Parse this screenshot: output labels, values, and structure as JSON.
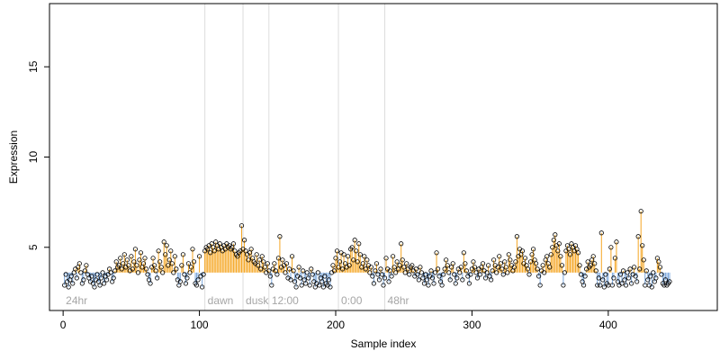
{
  "chart_data": {
    "type": "scatter",
    "title": "",
    "xlabel": "Sample index",
    "ylabel": "Expression",
    "xlim": [
      -10,
      480
    ],
    "ylim": [
      1.5,
      18.5
    ],
    "xticks": [
      0,
      100,
      200,
      300,
      400
    ],
    "yticks": [
      5,
      10,
      15
    ],
    "baseline": 3.6,
    "colors": {
      "above": "#f5a623",
      "below": "#7aa7dd",
      "separator": "#dddddd",
      "point_stroke": "#000000",
      "label": "#a6a6a6"
    },
    "group_labels": [
      {
        "text": "24hr",
        "x": 2
      },
      {
        "text": "dawn",
        "x": 106
      },
      {
        "text": "dusk",
        "x": 134
      },
      {
        "text": "12:00",
        "x": 153
      },
      {
        "text": "0:00",
        "x": 204
      },
      {
        "text": "48hr",
        "x": 238
      }
    ],
    "separators": [
      104,
      132,
      151,
      202,
      236
    ],
    "series": [
      {
        "x_start": 1,
        "values": [
          2.9,
          3.5,
          3.1,
          2.8,
          3.2,
          3.4,
          3.0,
          3.6,
          3.8,
          3.3,
          3.9,
          4.1,
          3.6,
          3.0,
          3.2,
          3.7,
          4.0,
          3.5,
          3.3,
          3.1,
          3.4,
          3.0,
          2.8,
          3.2,
          3.5,
          3.1,
          2.9,
          3.3,
          3.6,
          3.0,
          3.4,
          3.2,
          3.5,
          3.8,
          3.6,
          3.1,
          3.3,
          3.7,
          4.2,
          3.9,
          4.0,
          4.4,
          3.8,
          4.1,
          4.6,
          3.9,
          4.3,
          4.0,
          3.7,
          4.5,
          3.8,
          4.2,
          4.9,
          4.0,
          3.6,
          4.3,
          4.7,
          3.9,
          4.1,
          4.4,
          3.8,
          3.5,
          3.2,
          3.0,
          3.9,
          4.4,
          4.0,
          3.7,
          3.3,
          4.8,
          4.2,
          3.9,
          3.6,
          5.3,
          4.6,
          5.1,
          4.0,
          4.3,
          4.8,
          4.1,
          3.6,
          4.5,
          3.8,
          3.2,
          2.9,
          3.1,
          4.0,
          4.6,
          3.5,
          3.0,
          3.3,
          4.1,
          3.6,
          3.9,
          4.9,
          4.2,
          3.0,
          2.9,
          3.2,
          4.5,
          3.4,
          2.8,
          3.5,
          4.8,
          5.0,
          4.9,
          5.1,
          4.7,
          5.2,
          5.0,
          4.8,
          5.3,
          5.1,
          4.9,
          5.2,
          5.0,
          4.8,
          5.1,
          4.9,
          5.2,
          5.0,
          5.1,
          4.9,
          5.0,
          5.2,
          4.8,
          4.6,
          4.5,
          4.7,
          4.8,
          6.2,
          4.9,
          5.4,
          4.8,
          4.6,
          4.3,
          4.7,
          4.9,
          4.4,
          4.2,
          4.1,
          4.6,
          4.0,
          4.3,
          3.8,
          4.5,
          4.2,
          3.9,
          3.6,
          4.1,
          3.7,
          3.4,
          2.9,
          3.8,
          4.1,
          3.7,
          3.5,
          4.4,
          5.6,
          3.9,
          4.3,
          4.0,
          3.6,
          4.1,
          3.3,
          3.8,
          3.2,
          4.5,
          3.7,
          3.1,
          2.8,
          3.4,
          3.9,
          3.3,
          2.9,
          3.7,
          3.2,
          3.0,
          3.6,
          3.3,
          2.9,
          3.8,
          3.5,
          3.1,
          2.8,
          3.0,
          3.6,
          2.9,
          3.3,
          3.1,
          2.8,
          3.4,
          3.0,
          2.9,
          3.2,
          2.8,
          3.6,
          4.0,
          3.7,
          4.4,
          4.8,
          3.9,
          4.2,
          4.7,
          3.8,
          4.6,
          4.1,
          3.9,
          4.5,
          4.0,
          4.9,
          5.0,
          4.3,
          5.4,
          4.8,
          4.2,
          5.2,
          4.6,
          3.9,
          4.1,
          4.5,
          3.8,
          4.3,
          4.0,
          3.6,
          3.9,
          3.4,
          3.0,
          3.7,
          4.1,
          3.5,
          3.2,
          3.8,
          3.5,
          2.9,
          3.3,
          4.4,
          3.8,
          3.1,
          3.7,
          3.4,
          4.5,
          3.9,
          3.6,
          4.2,
          3.8,
          4.0,
          5.2,
          4.3,
          3.9,
          3.6,
          4.1,
          3.8,
          3.5,
          3.9,
          4.0,
          3.7,
          3.4,
          3.8,
          3.5,
          3.2,
          3.9,
          3.6,
          3.3,
          3.0,
          3.5,
          3.2,
          2.9,
          3.4,
          3.7,
          3.3,
          3.0,
          3.6,
          4.7,
          3.8,
          3.4,
          3.1,
          2.9,
          3.5,
          3.8,
          4.3,
          4.0,
          3.6,
          3.2,
          3.9,
          4.1,
          3.5,
          3.0,
          3.3,
          3.8,
          3.6,
          3.9,
          3.2,
          4.7,
          4.1,
          3.7,
          3.4,
          3.0,
          3.5,
          3.8,
          4.2,
          3.9,
          3.6,
          3.3,
          3.8,
          3.5,
          3.9,
          4.1,
          3.7,
          3.3,
          3.6,
          4.0,
          3.4,
          3.2,
          3.7,
          4.3,
          4.0,
          3.6,
          3.9,
          4.5,
          4.1,
          3.8,
          3.5,
          4.2,
          3.9,
          3.6,
          4.6,
          4.3,
          4.0,
          3.7,
          3.9,
          4.2,
          5.6,
          4.5,
          4.9,
          4.6,
          4.8,
          4.1,
          4.4,
          4.0,
          3.8,
          3.5,
          4.2,
          4.6,
          4.9,
          4.3,
          4.1,
          3.8,
          3.4,
          2.9,
          3.7,
          4.0,
          3.6,
          4.3,
          4.5,
          4.1,
          3.9,
          4.6,
          5.0,
          5.4,
          5.7,
          5.1,
          4.8,
          5.2,
          4.5,
          4.0,
          2.9,
          3.6,
          4.8,
          5.1,
          4.9,
          4.6,
          5.2,
          5.0,
          4.8,
          5.1,
          4.9,
          4.7,
          4.0,
          3.5,
          3.1,
          2.9,
          3.4,
          3.8,
          4.2,
          3.9,
          4.0,
          4.3,
          4.5,
          4.1,
          3.7,
          2.9,
          3.3,
          2.9,
          5.8,
          3.2,
          2.8,
          3.5,
          3.0,
          2.9,
          3.8,
          5.0,
          2.9,
          3.3,
          4.4,
          5.3,
          3.1,
          2.9,
          3.5,
          3.0,
          3.7,
          3.2,
          2.9,
          3.6,
          3.3,
          3.8,
          3.0,
          3.5,
          3.9,
          3.4,
          3.1,
          5.6,
          3.8,
          7.0,
          5.1,
          4.3,
          2.9,
          3.7,
          3.2,
          2.9,
          3.4,
          2.8,
          3.6,
          3.1,
          3.3,
          4.4,
          4.2,
          3.9,
          3.5,
          3.0,
          2.9,
          3.2,
          2.9,
          3.0,
          3.1
        ]
      }
    ]
  }
}
